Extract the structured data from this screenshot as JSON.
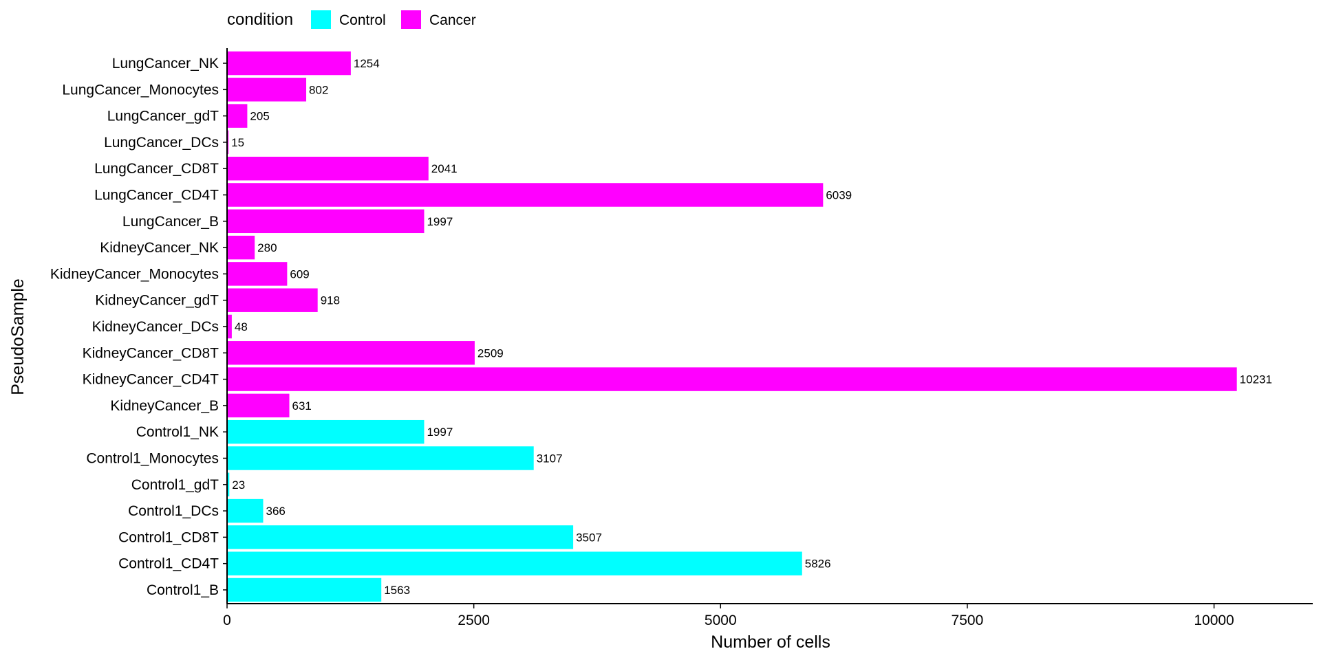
{
  "chart_data": {
    "type": "bar",
    "orientation": "horizontal",
    "xlabel": "Number of cells",
    "ylabel": "PseudoSample",
    "xlim": [
      0,
      11000
    ],
    "x_ticks": [
      0,
      2500,
      5000,
      7500,
      10000
    ],
    "grid": false,
    "legend": {
      "title": "condition",
      "placement": "top-left",
      "entries": [
        {
          "name": "Control",
          "color": "#00FFFF"
        },
        {
          "name": "Cancer",
          "color": "#FF00FF"
        }
      ]
    },
    "categories": [
      "LungCancer_NK",
      "LungCancer_Monocytes",
      "LungCancer_gdT",
      "LungCancer_DCs",
      "LungCancer_CD8T",
      "LungCancer_CD4T",
      "LungCancer_B",
      "KidneyCancer_NK",
      "KidneyCancer_Monocytes",
      "KidneyCancer_gdT",
      "KidneyCancer_DCs",
      "KidneyCancer_CD8T",
      "KidneyCancer_CD4T",
      "KidneyCancer_B",
      "Control1_NK",
      "Control1_Monocytes",
      "Control1_gdT",
      "Control1_DCs",
      "Control1_CD8T",
      "Control1_CD4T",
      "Control1_B"
    ],
    "values": [
      1254,
      802,
      205,
      15,
      2041,
      6039,
      1997,
      280,
      609,
      918,
      48,
      2509,
      10231,
      631,
      1997,
      3107,
      23,
      366,
      3507,
      5826,
      1563
    ],
    "condition": [
      "Cancer",
      "Cancer",
      "Cancer",
      "Cancer",
      "Cancer",
      "Cancer",
      "Cancer",
      "Cancer",
      "Cancer",
      "Cancer",
      "Cancer",
      "Cancer",
      "Cancer",
      "Cancer",
      "Control",
      "Control",
      "Control",
      "Control",
      "Control",
      "Control",
      "Control"
    ]
  }
}
